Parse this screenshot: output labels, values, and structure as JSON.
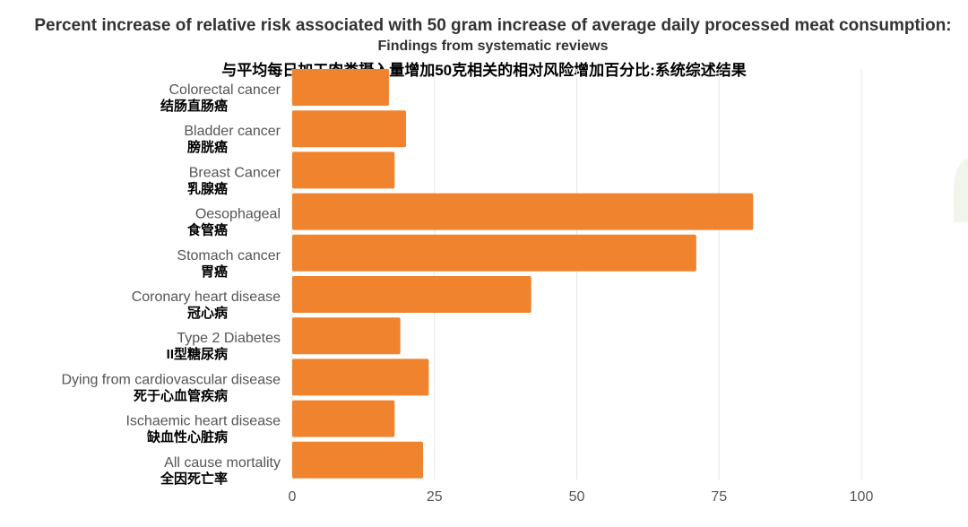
{
  "chart_data": {
    "type": "bar",
    "orientation": "horizontal",
    "title": "Percent increase of relative risk associated with 50 gram increase of average daily processed meat consumption:",
    "subtitle": "Findings from systematic reviews",
    "title_zh": "与平均每日加工肉类摄入量增加50克相关的相对风险增加百分比:系统综述结果",
    "categories": [
      {
        "en": "Colorectal cancer",
        "zh": "结肠直肠癌"
      },
      {
        "en": "Bladder cancer",
        "zh": "膀胱癌"
      },
      {
        "en": "Breast Cancer",
        "zh": "乳腺癌"
      },
      {
        "en": "Oesophageal",
        "zh": "食管癌"
      },
      {
        "en": "Stomach cancer",
        "zh": "胃癌"
      },
      {
        "en": "Coronary heart disease",
        "zh": "冠心病"
      },
      {
        "en": "Type 2 Diabetes",
        "zh": "II型糖尿病"
      },
      {
        "en": "Dying from cardiovascular disease",
        "zh": "死于心血管疾病"
      },
      {
        "en": "Ischaemic heart disease",
        "zh": "缺血性心脏病"
      },
      {
        "en": "All cause mortality",
        "zh": "全因死亡率"
      }
    ],
    "values": [
      17,
      20,
      18,
      81,
      71,
      42,
      19,
      24,
      18,
      23
    ],
    "xlim": [
      0,
      100
    ],
    "xticks": [
      0,
      25,
      50,
      75,
      100
    ],
    "grid": true,
    "bar_color": "#f0842e",
    "grid_color": "#e6e6e6"
  }
}
